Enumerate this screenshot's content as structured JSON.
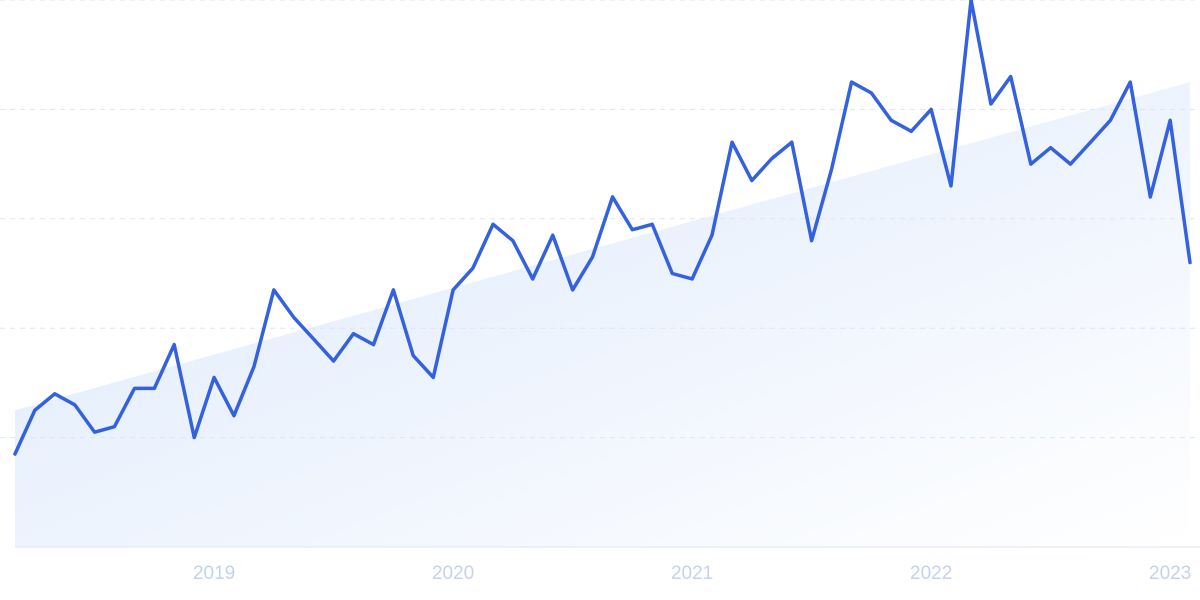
{
  "chart_data": {
    "type": "line",
    "x": [
      2018.167,
      2018.25,
      2018.333,
      2018.417,
      2018.5,
      2018.583,
      2018.667,
      2018.75,
      2018.833,
      2018.917,
      2019,
      2019.083,
      2019.167,
      2019.25,
      2019.333,
      2019.417,
      2019.5,
      2019.583,
      2019.667,
      2019.75,
      2019.833,
      2019.917,
      2020,
      2020.083,
      2020.167,
      2020.25,
      2020.333,
      2020.417,
      2020.5,
      2020.583,
      2020.667,
      2020.75,
      2020.833,
      2020.917,
      2021,
      2021.083,
      2021.167,
      2021.25,
      2021.333,
      2021.417,
      2021.5,
      2021.583,
      2021.667,
      2021.75,
      2021.833,
      2021.917,
      2022,
      2022.083,
      2022.167,
      2022.25,
      2022.333,
      2022.417,
      2022.5,
      2022.583,
      2022.667,
      2022.75,
      2022.833,
      2022.917,
      2023,
      2023.083
    ],
    "series": [
      {
        "color": "#3361e0",
        "values": [
          17,
          25,
          28,
          26,
          21,
          22,
          29,
          29,
          37,
          20,
          31,
          24,
          33,
          47,
          42,
          38,
          34,
          39,
          37,
          47,
          35,
          31,
          47,
          51,
          59,
          56,
          49,
          57,
          47,
          53,
          64,
          58,
          59,
          50,
          49,
          57,
          74,
          67,
          71,
          74,
          56,
          69,
          85,
          83,
          78,
          76,
          80,
          66,
          100,
          81,
          86,
          70,
          73,
          70,
          74,
          78,
          85,
          64,
          78,
          52
        ]
      }
    ],
    "trend": {
      "x": [
        2018.167,
        2023.083
      ],
      "values": [
        25,
        85
      ],
      "color": "#dbe8fb"
    },
    "xlim": [
      2018.167,
      2023.083
    ],
    "xticks": [
      2019,
      2020,
      2021,
      2022,
      2023
    ],
    "ylim": [
      0,
      100
    ],
    "yticks": [
      20,
      40,
      60,
      80,
      100
    ],
    "grid": true
  }
}
